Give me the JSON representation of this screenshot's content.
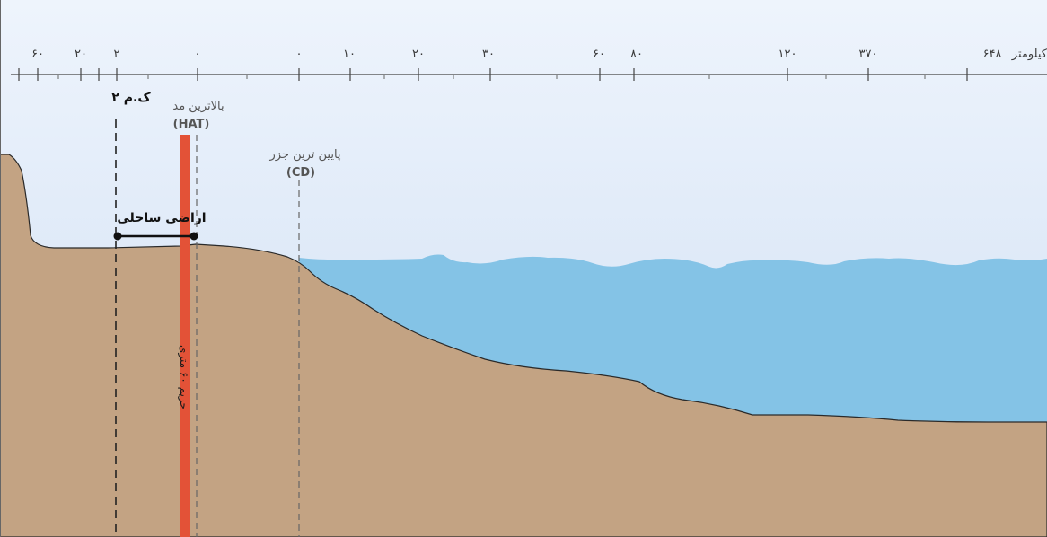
{
  "scale": {
    "unit_label": "کیلومتر",
    "ticks": [
      "۶۴۸",
      "۳۷۰",
      "۱۲۰",
      "۸۰",
      "۶۰",
      "۳۰",
      "۲۰",
      "۱۰",
      "۰",
      "۰",
      "۲",
      "۲۰",
      "۶۰"
    ]
  },
  "annotations": {
    "nm_label": "۲ ک.م",
    "hat_title": "بالاترین مد",
    "hat_code": "(HAT)",
    "cd_title": "پایین ترین جزر",
    "cd_code": "(CD)",
    "coastal_land": "اراضی ساحلی",
    "buffer_label": "حریم ۶۰ متری"
  },
  "colors": {
    "sky_top": "#e9f1fb",
    "sky_bottom": "#d2e1f5",
    "land": "#c3a383",
    "land_edge": "#2a2a2a",
    "sea": "#84c3e6",
    "buffer": "#e35237"
  }
}
